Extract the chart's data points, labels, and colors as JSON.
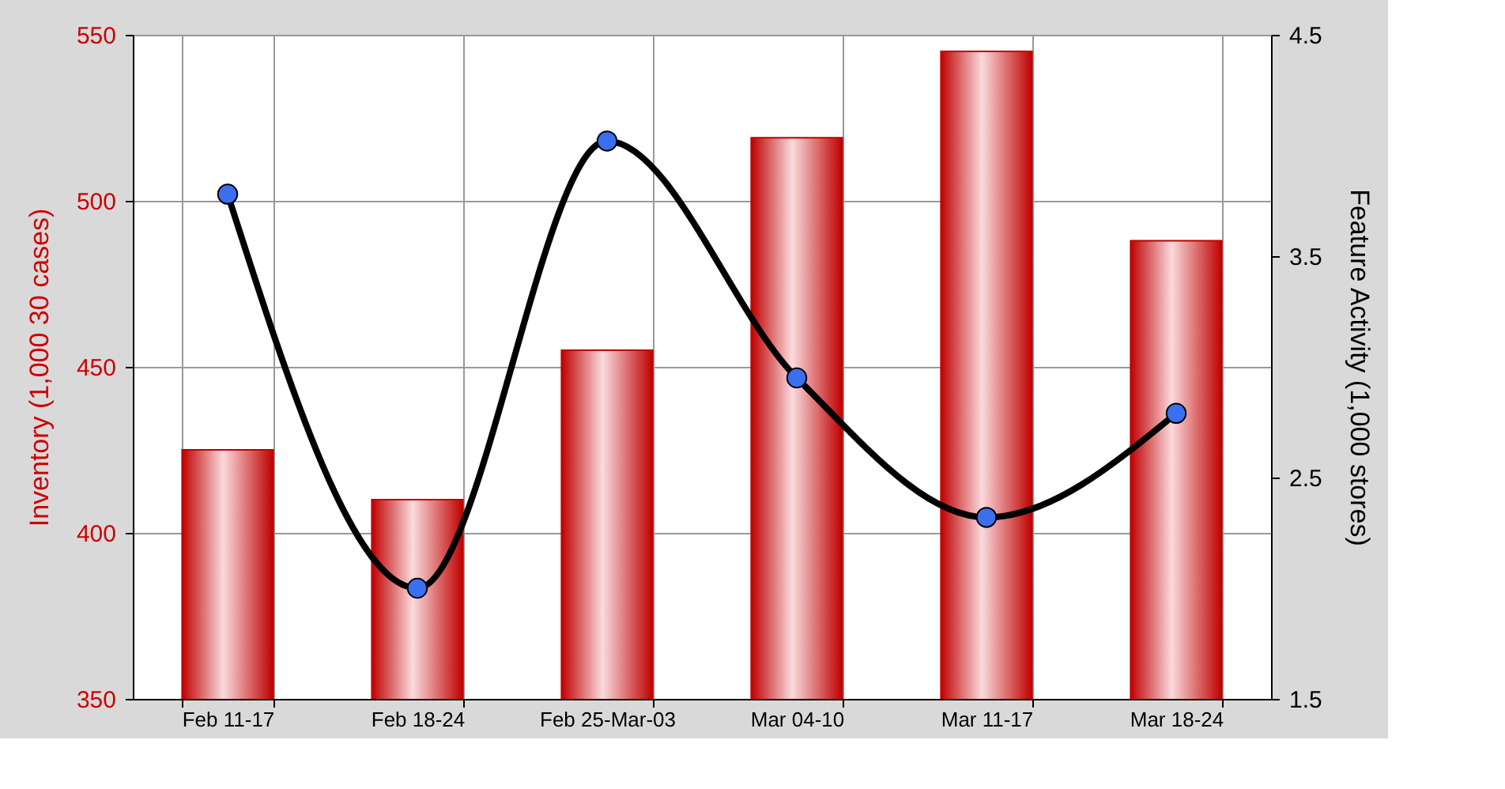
{
  "chart_data": {
    "type": "bar",
    "categories": [
      "Feb 11-17",
      "Feb 18-24",
      "Feb 25-Mar-03",
      "Mar 04-10",
      "Mar 11-17",
      "Mar 18-24"
    ],
    "ylabel": "Inventory (1,000 30  cases)",
    "y2label": "Feature Activity (1,000 stores)",
    "series": [
      {
        "color": "#c00000",
        "values": [
          425,
          410,
          455,
          519,
          545,
          488
        ]
      },
      {
        "type": "line",
        "axis": "y2",
        "color": "#000000",
        "marker": "circle",
        "values": [
          3.78,
          2.0,
          4.02,
          2.95,
          2.32,
          2.79
        ]
      }
    ],
    "ylim": [
      350,
      550
    ],
    "yticks": [
      350,
      400,
      450,
      500,
      550
    ],
    "y2lim": [
      1.5,
      4.5
    ],
    "y2ticks": [
      1.5,
      2.5,
      3.5,
      4.5
    ],
    "grid": true
  }
}
